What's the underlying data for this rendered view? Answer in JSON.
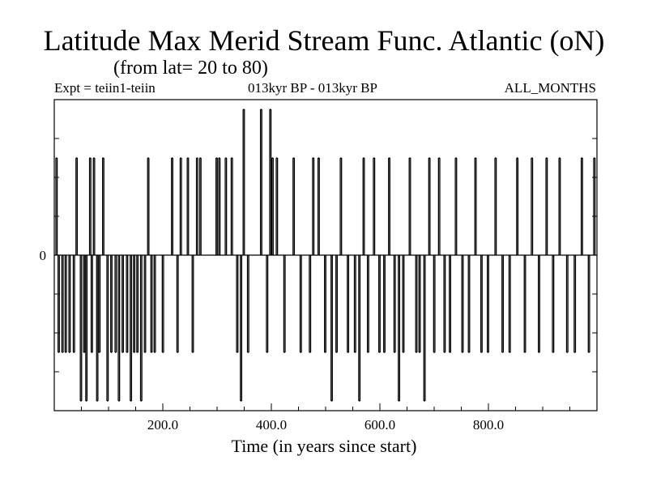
{
  "chart_data": {
    "type": "line",
    "title": "Latitude Max Merid Stream Func. Atlantic (oN)",
    "subtitle": "(from lat= 20 to 80)",
    "header_left": "Expt = teiin1-teiin",
    "header_center": "013kyr BP - 013kyr BP",
    "header_right": "ALL_MONTHS",
    "xlabel": "Time (in years since start)",
    "ylabel": "",
    "xlim": [
      0,
      1000
    ],
    "ylim": [
      -4,
      4
    ],
    "x_ticks": [
      200,
      400,
      600,
      800
    ],
    "x_tick_labels": [
      "200.0",
      "400.0",
      "600.0",
      "800.0"
    ],
    "y_tick_labels": [
      {
        "value": 0,
        "label": "0"
      }
    ],
    "series": [
      {
        "spikes": [
          [
            3,
            2.5
          ],
          [
            7,
            -2.5
          ],
          [
            14,
            -2.5
          ],
          [
            20,
            -2.5
          ],
          [
            27,
            -2.5
          ],
          [
            35,
            -2.5
          ],
          [
            40,
            2.5
          ],
          [
            48,
            -3.75
          ],
          [
            54,
            -2.5
          ],
          [
            58,
            -3.75
          ],
          [
            65,
            2.5
          ],
          [
            68,
            -2.5
          ],
          [
            72,
            2.5
          ],
          [
            78,
            -3.75
          ],
          [
            82,
            -2.5
          ],
          [
            89,
            2.5
          ],
          [
            97,
            -3.75
          ],
          [
            104,
            -2.5
          ],
          [
            112,
            -2.5
          ],
          [
            118,
            -3.75
          ],
          [
            125,
            -2.5
          ],
          [
            133,
            -2.5
          ],
          [
            140,
            -3.75
          ],
          [
            146,
            -2.5
          ],
          [
            152,
            -2.5
          ],
          [
            159,
            -3.75
          ],
          [
            166,
            -2.5
          ],
          [
            172,
            2.5
          ],
          [
            178,
            -2.5
          ],
          [
            184,
            -2.5
          ],
          [
            199,
            -2.5
          ],
          [
            216,
            2.5
          ],
          [
            226,
            -2.5
          ],
          [
            232,
            2.5
          ],
          [
            245,
            2.5
          ],
          [
            254,
            -2.5
          ],
          [
            262,
            2.5
          ],
          [
            268,
            2.5
          ],
          [
            298,
            2.5
          ],
          [
            303,
            2.5
          ],
          [
            315,
            2.5
          ],
          [
            326,
            2.5
          ],
          [
            336,
            -2.5
          ],
          [
            343,
            -3.75
          ],
          [
            348,
            3.75
          ],
          [
            356,
            -2.5
          ],
          [
            380,
            3.75
          ],
          [
            391,
            -2.5
          ],
          [
            397,
            3.75
          ],
          [
            401,
            2.5
          ],
          [
            409,
            2.5
          ],
          [
            423,
            -2.5
          ],
          [
            440,
            2.5
          ],
          [
            453,
            -2.5
          ],
          [
            470,
            -2.5
          ],
          [
            476,
            2.5
          ],
          [
            486,
            2.5
          ],
          [
            498,
            -2.5
          ],
          [
            510,
            -3.75
          ],
          [
            519,
            -2.5
          ],
          [
            527,
            2.5
          ],
          [
            540,
            -2.5
          ],
          [
            553,
            -2.5
          ],
          [
            561,
            -3.75
          ],
          [
            569,
            2.5
          ],
          [
            577,
            -2.5
          ],
          [
            588,
            2.5
          ],
          [
            598,
            -2.5
          ],
          [
            607,
            -2.5
          ],
          [
            616,
            2.5
          ],
          [
            626,
            -2.5
          ],
          [
            634,
            -3.75
          ],
          [
            642,
            -2.5
          ],
          [
            654,
            2.5
          ],
          [
            666,
            -2.5
          ],
          [
            672,
            -2.5
          ],
          [
            681,
            -3.75
          ],
          [
            690,
            2.5
          ],
          [
            699,
            -2.5
          ],
          [
            708,
            2.5
          ],
          [
            718,
            -2.5
          ],
          [
            728,
            -2.5
          ],
          [
            739,
            2.5
          ],
          [
            751,
            -2.5
          ],
          [
            763,
            -2.5
          ],
          [
            775,
            2.5
          ],
          [
            786,
            -2.5
          ],
          [
            798,
            -2.5
          ],
          [
            812,
            2.5
          ],
          [
            825,
            -2.5
          ],
          [
            838,
            -2.5
          ],
          [
            852,
            2.5
          ],
          [
            866,
            -2.5
          ],
          [
            879,
            2.5
          ],
          [
            892,
            -2.5
          ],
          [
            906,
            2.5
          ],
          [
            918,
            -2.5
          ],
          [
            930,
            2.5
          ],
          [
            944,
            -2.5
          ],
          [
            958,
            -2.5
          ],
          [
            971,
            2.5
          ],
          [
            984,
            -2.5
          ],
          [
            994,
            2.5
          ]
        ]
      }
    ]
  }
}
